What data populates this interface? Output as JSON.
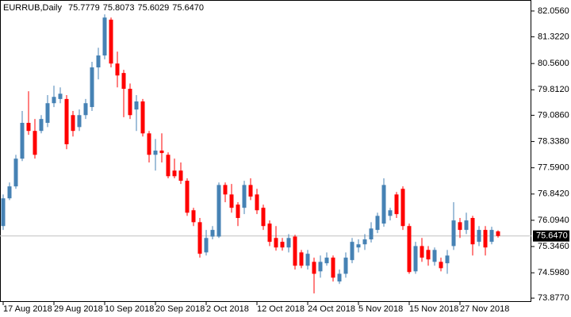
{
  "chart_data": {
    "type": "candlestick",
    "title": "EURRUB,Daily",
    "info_labels": [
      "75.7779",
      "75.8073",
      "75.6029",
      "75.6470"
    ],
    "categories": [
      "17 Aug 2018",
      null,
      null,
      null,
      null,
      null,
      null,
      null,
      "29 Aug 2018",
      null,
      null,
      null,
      null,
      null,
      null,
      null,
      "10 Sep 2018",
      null,
      null,
      null,
      null,
      null,
      null,
      null,
      "20 Sep 2018",
      null,
      null,
      null,
      null,
      null,
      null,
      null,
      "2 Oct 2018",
      null,
      null,
      null,
      null,
      null,
      null,
      null,
      "12 Oct 2018",
      null,
      null,
      null,
      null,
      null,
      null,
      null,
      "24 Oct 2018",
      null,
      null,
      null,
      null,
      null,
      null,
      null,
      "5 Nov 2018",
      null,
      null,
      null,
      null,
      null,
      null,
      null,
      "15 Nov 2018",
      null,
      null,
      null,
      null,
      null,
      null,
      null,
      "27 Nov 2018",
      null,
      null,
      null,
      null,
      null,
      null
    ],
    "open": [
      75.93,
      76.72,
      77.06,
      77.85,
      78.87,
      78.64,
      78.64,
      78.87,
      79.43,
      79.55,
      79.55,
      79.09,
      78.75,
      79.09,
      79.32,
      80.45,
      80.79,
      81.81,
      80.56,
      80.29,
      79.84,
      79.25,
      79.48,
      78.57,
      77.96,
      78.08,
      77.96,
      77.51,
      77.51,
      77.22,
      76.38,
      76.04,
      75.18,
      75.63,
      75.63,
      77.1,
      76.83,
      76.54,
      76.45,
      77.1,
      76.83,
      76.45,
      76.0,
      75.59,
      75.48,
      75.32,
      75.63,
      75.18,
      74.8,
      74.91,
      74.64,
      74.87,
      75.03,
      74.35,
      74.57,
      74.96,
      75.32,
      75.41,
      75.55,
      75.82,
      76.0,
      76.22,
      76.83,
      76.99,
      75.93,
      74.64,
      75.36,
      75.25,
      74.91,
      74.91,
      74.87,
      75.36,
      76.04,
      75.82,
      76.16,
      75.48,
      75.82,
      75.48,
      75.7779
    ],
    "high": [
      76.83,
      77.17,
      77.96,
      79.21,
      79.77,
      78.98,
      79.09,
      79.66,
      79.93,
      79.88,
      79.66,
      79.21,
      79.25,
      79.55,
      80.61,
      81.01,
      81.96,
      81.87,
      80.9,
      80.38,
      79.99,
      79.66,
      79.55,
      78.64,
      78.41,
      78.57,
      78.03,
      77.85,
      77.74,
      77.29,
      76.45,
      76.16,
      75.82,
      75.93,
      77.17,
      77.17,
      77.13,
      76.61,
      77.22,
      77.29,
      76.99,
      76.54,
      76.09,
      75.93,
      75.59,
      75.7,
      75.68,
      75.25,
      75.25,
      75.03,
      75.09,
      75.18,
      75.09,
      74.69,
      75.18,
      75.59,
      75.55,
      75.7,
      76.04,
      76.31,
      77.29,
      76.45,
      76.9,
      77.06,
      76.0,
      75.48,
      75.59,
      75.36,
      75.32,
      75.03,
      75.25,
      76.61,
      76.16,
      76.31,
      76.22,
      75.93,
      75.93,
      75.91,
      75.8073
    ],
    "low": [
      75.82,
      76.67,
      76.99,
      77.78,
      78.53,
      77.85,
      78.57,
      78.75,
      79.32,
      79.43,
      78.12,
      78.48,
      78.64,
      78.98,
      79.21,
      80.11,
      80.68,
      80.45,
      79.88,
      79.03,
      78.98,
      78.64,
      78.48,
      77.74,
      77.51,
      77.74,
      77.29,
      77.29,
      77.13,
      76.22,
      75.93,
      75.03,
      75.09,
      75.55,
      75.59,
      76.61,
      76.31,
      75.93,
      76.27,
      76.67,
      76.27,
      75.82,
      75.36,
      75.23,
      75.23,
      75.18,
      74.69,
      74.73,
      74.69,
      74.01,
      74.46,
      74.8,
      74.35,
      74.28,
      74.46,
      74.87,
      75.18,
      75.25,
      75.46,
      75.73,
      75.91,
      76.09,
      76.16,
      75.82,
      74.57,
      74.57,
      74.91,
      74.8,
      74.8,
      74.64,
      74.57,
      75.25,
      75.59,
      75.7,
      75.09,
      75.36,
      75.09,
      75.41,
      75.6029
    ],
    "close": [
      76.72,
      77.06,
      77.85,
      78.87,
      78.64,
      77.96,
      78.98,
      79.43,
      79.61,
      79.7,
      78.26,
      78.64,
      79.09,
      79.43,
      80.45,
      80.79,
      81.87,
      80.56,
      80.22,
      79.84,
      79.09,
      79.48,
      78.57,
      77.96,
      78.08,
      78.01,
      77.35,
      77.35,
      77.22,
      76.31,
      76.04,
      75.14,
      75.59,
      75.82,
      77.1,
      76.83,
      76.45,
      76.16,
      77.1,
      76.77,
      76.38,
      75.93,
      75.48,
      75.32,
      75.32,
      75.59,
      74.8,
      74.8,
      75.14,
      74.57,
      74.91,
      75.03,
      74.46,
      74.57,
      75.03,
      75.48,
      75.41,
      75.55,
      75.86,
      76.22,
      77.1,
      76.38,
      76.27,
      75.93,
      74.62,
      75.36,
      75.03,
      74.98,
      75.25,
      74.73,
      75.09,
      76.09,
      75.82,
      76.09,
      75.41,
      75.82,
      75.32,
      75.82,
      75.647
    ],
    "up_color": "#4682b4",
    "down_color": "#ff0000",
    "ylim": [
      73.79,
      82.37
    ],
    "yticks": [
      {
        "value": 82.056,
        "label": "82.0560"
      },
      {
        "value": 81.322,
        "label": "81.3220"
      },
      {
        "value": 80.56,
        "label": "80.5600"
      },
      {
        "value": 79.812,
        "label": "79.8120"
      },
      {
        "value": 79.086,
        "label": "79.0860"
      },
      {
        "value": 78.338,
        "label": "78.3380"
      },
      {
        "value": 77.59,
        "label": "77.5900"
      },
      {
        "value": 76.842,
        "label": "76.8420"
      },
      {
        "value": 76.094,
        "label": "76.0940"
      },
      {
        "value": 75.346,
        "label": "75.3460"
      },
      {
        "value": 74.598,
        "label": "74.5980"
      },
      {
        "value": 73.877,
        "label": "73.8770"
      }
    ],
    "current_price": {
      "value": 75.647,
      "label": "75.6470"
    }
  }
}
